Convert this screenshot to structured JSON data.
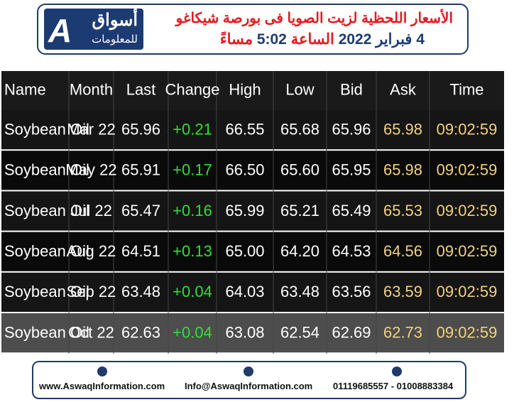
{
  "header": {
    "logo_text": "أسواق",
    "logo_subtext": "للمعلومات",
    "title": "الأسعار اللحظية لزيت الصويا فى بورصة شيكاغو",
    "date": "4 فبراير 2022",
    "time_word": "الساعة",
    "time": "5:02",
    "period": "مساءً"
  },
  "table": {
    "columns": [
      "Name",
      "Month",
      "Last",
      "Change",
      "High",
      "Low",
      "Bid",
      "Ask",
      "Time"
    ],
    "rows": [
      [
        "Soybean Oil",
        "Mar 22",
        "65.96",
        "+0.21",
        "66.55",
        "65.68",
        "65.96",
        "65.98",
        "09:02:59"
      ],
      [
        "Soybean Oil",
        "May 22",
        "65.91",
        "+0.17",
        "66.50",
        "65.60",
        "65.95",
        "65.98",
        "09:02:59"
      ],
      [
        "Soybean Oil",
        "Jul 22",
        "65.47",
        "+0.16",
        "65.99",
        "65.21",
        "65.49",
        "65.53",
        "09:02:59"
      ],
      [
        "Soybean Oil",
        "Aug 22",
        "64.51",
        "+0.13",
        "65.00",
        "64.20",
        "64.53",
        "64.56",
        "09:02:59"
      ],
      [
        "Soybean Oil",
        "Sep 22",
        "63.48",
        "+0.04",
        "64.03",
        "63.48",
        "63.56",
        "63.59",
        "09:02:59"
      ],
      [
        "Soybean Oil",
        "Oct 22",
        "62.63",
        "+0.04",
        "63.08",
        "62.54",
        "62.69",
        "62.73",
        "09:02:59"
      ]
    ]
  },
  "footer": {
    "website": "www.AswaqInformation.com",
    "email": "Info@AswaqInformation.com",
    "phones": "01119685557 - 01008883384"
  }
}
